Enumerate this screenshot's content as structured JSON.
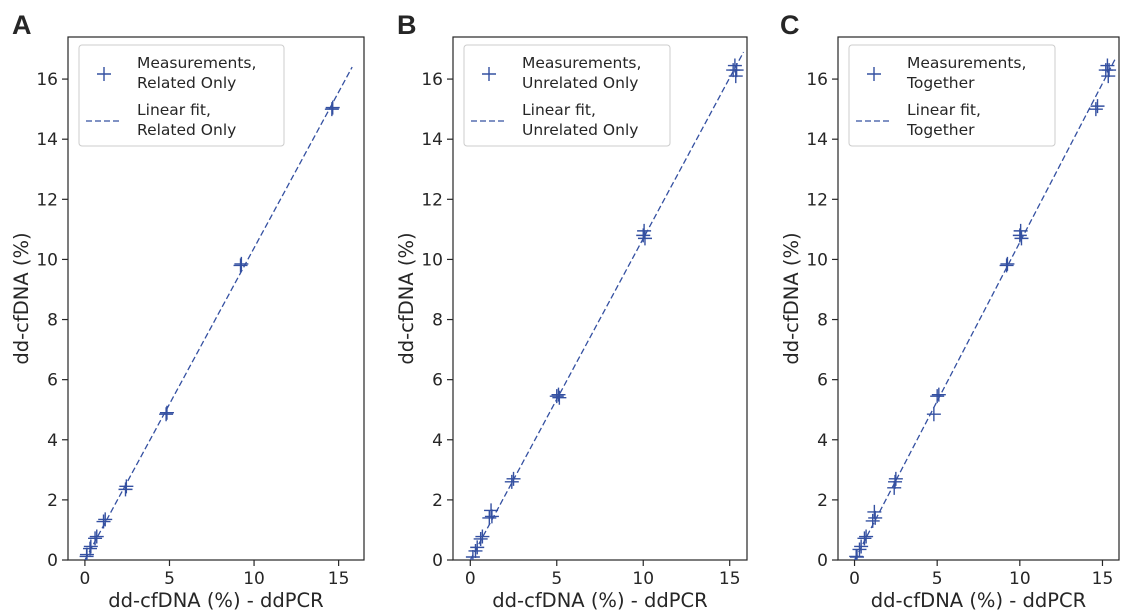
{
  "figure": {
    "accent_color": "#3450a1",
    "axis_color": "#262626",
    "legend_border_color": "#cccccc"
  },
  "chart_data": [
    {
      "type": "scatter",
      "panel_letter": "A",
      "title": "",
      "xlabel": "dd-cfDNA (%) - ddPCR",
      "ylabel": "dd-cfDNA (%)",
      "xlim": [
        -1,
        16.5
      ],
      "ylim": [
        0,
        17.4
      ],
      "xticks": [
        0,
        5,
        10,
        15
      ],
      "yticks": [
        0,
        2,
        4,
        6,
        8,
        10,
        12,
        14,
        16
      ],
      "grid": false,
      "legend_position": "top-left",
      "series": [
        {
          "name": "Measurements,\nRelated Only",
          "kind": "marker-plus",
          "points": [
            [
              0.1,
              0.12
            ],
            [
              0.12,
              0.18
            ],
            [
              0.3,
              0.38
            ],
            [
              0.35,
              0.45
            ],
            [
              0.6,
              0.72
            ],
            [
              0.7,
              0.78
            ],
            [
              1.1,
              1.28
            ],
            [
              1.2,
              1.35
            ],
            [
              2.4,
              2.35
            ],
            [
              2.45,
              2.45
            ],
            [
              4.8,
              4.85
            ],
            [
              4.85,
              4.9
            ],
            [
              9.2,
              9.8
            ],
            [
              9.25,
              9.85
            ],
            [
              14.6,
              15.0
            ],
            [
              14.65,
              15.05
            ]
          ]
        },
        {
          "name": "Linear fit,\nRelated Only",
          "kind": "dashed-line",
          "line": [
            [
              0,
              0.0
            ],
            [
              15.8,
              16.4
            ]
          ]
        }
      ]
    },
    {
      "type": "scatter",
      "panel_letter": "B",
      "title": "",
      "xlabel": "dd-cfDNA (%) - ddPCR",
      "ylabel": "dd-cfDNA (%)",
      "xlim": [
        -1,
        16
      ],
      "ylim": [
        0,
        17.4
      ],
      "xticks": [
        0,
        5,
        10,
        15
      ],
      "yticks": [
        0,
        2,
        4,
        6,
        8,
        10,
        12,
        14,
        16
      ],
      "grid": false,
      "legend_position": "top-left",
      "series": [
        {
          "name": "Measurements,\nUnrelated Only",
          "kind": "marker-plus",
          "points": [
            [
              0.15,
              0.1
            ],
            [
              0.3,
              0.3
            ],
            [
              0.4,
              0.42
            ],
            [
              0.6,
              0.7
            ],
            [
              0.7,
              0.78
            ],
            [
              1.1,
              1.4
            ],
            [
              1.2,
              1.65
            ],
            [
              1.25,
              1.45
            ],
            [
              2.4,
              2.6
            ],
            [
              2.5,
              2.7
            ],
            [
              5.0,
              5.45
            ],
            [
              5.1,
              5.5
            ],
            [
              5.15,
              5.4
            ],
            [
              10.0,
              10.8
            ],
            [
              10.05,
              10.95
            ],
            [
              10.1,
              10.7
            ],
            [
              15.2,
              16.3
            ],
            [
              15.3,
              16.45
            ],
            [
              15.35,
              16.1
            ],
            [
              15.4,
              16.3
            ]
          ]
        },
        {
          "name": "Linear fit,\nUnrelated Only",
          "kind": "dashed-line",
          "line": [
            [
              0,
              0.0
            ],
            [
              15.8,
              16.9
            ]
          ]
        }
      ]
    },
    {
      "type": "scatter",
      "panel_letter": "C",
      "title": "",
      "xlabel": "dd-cfDNA (%) - ddPCR",
      "ylabel": "dd-cfDNA (%)",
      "xlim": [
        -1,
        16
      ],
      "ylim": [
        0,
        17.4
      ],
      "xticks": [
        0,
        5,
        10,
        15
      ],
      "yticks": [
        0,
        2,
        4,
        6,
        8,
        10,
        12,
        14,
        16
      ],
      "grid": false,
      "legend_position": "top-left",
      "series": [
        {
          "name": "Measurements,\nTogether",
          "kind": "marker-plus",
          "points": [
            [
              0.1,
              0.12
            ],
            [
              0.15,
              0.1
            ],
            [
              0.3,
              0.35
            ],
            [
              0.4,
              0.45
            ],
            [
              0.6,
              0.72
            ],
            [
              0.7,
              0.78
            ],
            [
              1.1,
              1.3
            ],
            [
              1.2,
              1.6
            ],
            [
              1.25,
              1.4
            ],
            [
              2.4,
              2.4
            ],
            [
              2.45,
              2.6
            ],
            [
              2.5,
              2.7
            ],
            [
              4.8,
              4.85
            ],
            [
              5.0,
              5.45
            ],
            [
              5.1,
              5.5
            ],
            [
              9.2,
              9.8
            ],
            [
              9.25,
              9.85
            ],
            [
              10.0,
              10.8
            ],
            [
              10.05,
              10.95
            ],
            [
              10.1,
              10.7
            ],
            [
              14.6,
              15.0
            ],
            [
              14.7,
              15.1
            ],
            [
              15.2,
              16.3
            ],
            [
              15.3,
              16.45
            ],
            [
              15.35,
              16.1
            ],
            [
              15.4,
              16.3
            ]
          ]
        },
        {
          "name": "Linear fit,\nTogether",
          "kind": "dashed-line",
          "line": [
            [
              0,
              0.0
            ],
            [
              15.8,
              16.7
            ]
          ]
        }
      ]
    }
  ]
}
